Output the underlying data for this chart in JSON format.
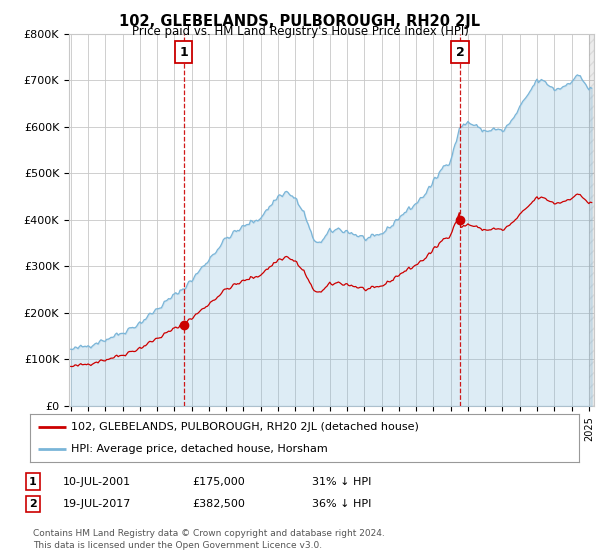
{
  "title": "102, GLEBELANDS, PULBOROUGH, RH20 2JL",
  "subtitle": "Price paid vs. HM Land Registry's House Price Index (HPI)",
  "hpi_label": "HPI: Average price, detached house, Horsham",
  "property_label": "102, GLEBELANDS, PULBOROUGH, RH20 2JL (detached house)",
  "hpi_color": "#7ab5d8",
  "hpi_fill_color": "#d6eaf8",
  "property_color": "#cc0000",
  "marker1_label": "1",
  "marker2_label": "2",
  "sale1_year": 2001.54,
  "sale1_price": 175000,
  "sale2_year": 2017.54,
  "sale2_price": 382500,
  "sale1_date": "10-JUL-2001",
  "sale1_price_str": "£175,000",
  "sale1_hpi": "31% ↓ HPI",
  "sale2_date": "19-JUL-2017",
  "sale2_price_str": "£382,500",
  "sale2_hpi": "36% ↓ HPI",
  "footer": "Contains HM Land Registry data © Crown copyright and database right 2024.\nThis data is licensed under the Open Government Licence v3.0.",
  "ylim": [
    0,
    800000
  ],
  "yticks": [
    0,
    100000,
    200000,
    300000,
    400000,
    500000,
    600000,
    700000,
    800000
  ],
  "ytick_labels": [
    "£0",
    "£100K",
    "£200K",
    "£300K",
    "£400K",
    "£500K",
    "£600K",
    "£700K",
    "£800K"
  ],
  "background_color": "#ffffff",
  "grid_color": "#c8c8c8",
  "x_min": 1994.9,
  "x_max": 2025.3
}
